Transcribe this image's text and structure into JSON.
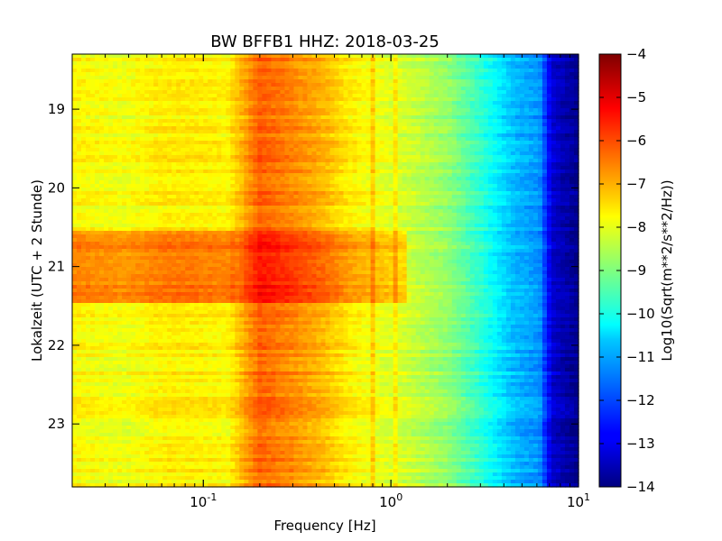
{
  "chart_data": {
    "type": "heatmap",
    "title": "BW BFFB1 HHZ: 2018-03-25",
    "xlabel": "Frequency [Hz]",
    "ylabel": "Lokalzeit (UTC + 2 Stunde)",
    "x_scale": "log",
    "xlim": [
      0.02,
      10
    ],
    "ylim": [
      18.3,
      23.8
    ],
    "y_inverted": true,
    "x_ticks": [
      {
        "value": 0.1,
        "base": "10",
        "exp": "-1"
      },
      {
        "value": 1,
        "base": "10",
        "exp": "0"
      },
      {
        "value": 10,
        "base": "10",
        "exp": "1"
      }
    ],
    "y_ticks": [
      {
        "value": 19,
        "label": "19"
      },
      {
        "value": 20,
        "label": "20"
      },
      {
        "value": 21,
        "label": "21"
      },
      {
        "value": 22,
        "label": "22"
      },
      {
        "value": 23,
        "label": "23"
      }
    ],
    "colorbar": {
      "label": "Log10(Sqrt(m**2/s**2/Hz))",
      "range": [
        -14,
        -4
      ],
      "ticks": [
        "-4",
        "-5",
        "-6",
        "-7",
        "-8",
        "-9",
        "-10",
        "-11",
        "-12",
        "-13",
        "-14"
      ],
      "colormap": "jet"
    },
    "spectrum_profile": [
      {
        "f": 0.02,
        "value": -7.7
      },
      {
        "f": 0.038,
        "value": -7.9
      },
      {
        "f": 0.06,
        "value": -7.6
      },
      {
        "f": 0.09,
        "value": -7.6
      },
      {
        "f": 0.135,
        "value": -7.7
      },
      {
        "f": 0.17,
        "value": -6.8
      },
      {
        "f": 0.2,
        "value": -6.2
      },
      {
        "f": 0.3,
        "value": -6.6
      },
      {
        "f": 0.45,
        "value": -7.1
      },
      {
        "f": 0.6,
        "value": -7.6
      },
      {
        "f": 0.8,
        "value": -7.9
      },
      {
        "f": 1.2,
        "value": -8.2
      },
      {
        "f": 2.0,
        "value": -8.8
      },
      {
        "f": 3.0,
        "value": -9.8
      },
      {
        "f": 4.5,
        "value": -10.9
      },
      {
        "f": 6.2,
        "value": -11.3
      },
      {
        "f": 7.2,
        "value": -13.2
      },
      {
        "f": 10,
        "value": -13.9
      }
    ],
    "features": [
      {
        "type": "horizontal_band",
        "time_start": 20.55,
        "time_end": 21.45,
        "delta": 1.2
      },
      {
        "type": "vertical_line",
        "frequency": 0.8,
        "delta": 0.6
      },
      {
        "type": "vertical_line",
        "frequency": 1.07,
        "delta": 0.5
      }
    ]
  }
}
